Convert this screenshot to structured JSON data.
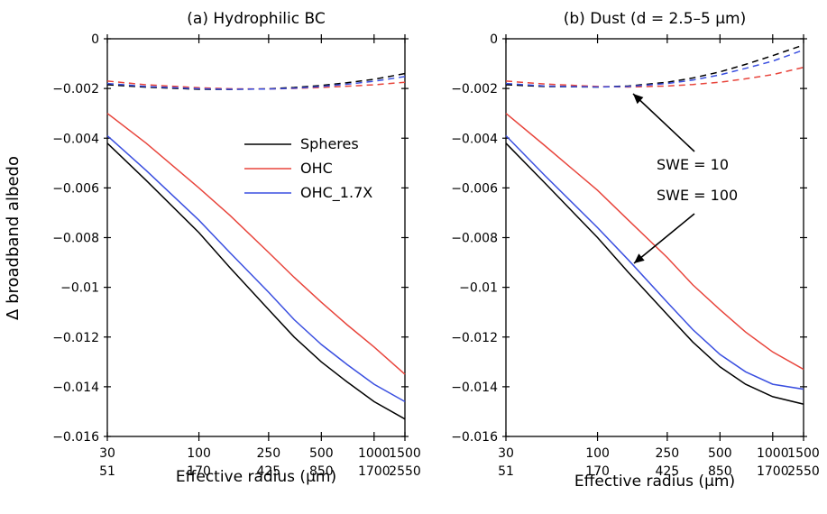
{
  "ylabel": "Δ broadband albedo",
  "chart_data": [
    {
      "type": "line",
      "title": "(a) Hydrophilic BC",
      "xlabel": "Effective radius (μm)",
      "ylabel": "Δ broadband albedo",
      "x_scale": "log",
      "xlim": [
        30,
        1500
      ],
      "ylim": [
        -0.016,
        0
      ],
      "x_ticks": [
        30,
        100,
        250,
        500,
        1000,
        1500
      ],
      "x_tick_labels_top": [
        "30",
        "100",
        "250",
        "500",
        "1000",
        "1500"
      ],
      "x_tick_labels_bottom": [
        "51",
        "170",
        "425",
        "850",
        "1700",
        "2550"
      ],
      "y_ticks": [
        0,
        -0.002,
        -0.004,
        -0.006,
        -0.008,
        -0.01,
        -0.012,
        -0.014,
        -0.016
      ],
      "y_tick_labels": [
        "0",
        "−0.002",
        "−0.004",
        "−0.006",
        "−0.008",
        "−0.01",
        "−0.012",
        "−0.014",
        "−0.016"
      ],
      "x": [
        30,
        50,
        100,
        150,
        250,
        350,
        500,
        700,
        1000,
        1500
      ],
      "legend": {
        "position": "center-right",
        "entries": [
          {
            "label": "Spheres",
            "color": "#000000"
          },
          {
            "label": "OHC",
            "color": "#e8453c"
          },
          {
            "label": "OHC_1.7X",
            "color": "#3a4fe0"
          }
        ]
      },
      "series": [
        {
          "name": "Spheres",
          "swe": 10,
          "style": "dashed",
          "color": "#000000",
          "values": [
            -0.00185,
            -0.00195,
            -0.00203,
            -0.00204,
            -0.00201,
            -0.00196,
            -0.00188,
            -0.00177,
            -0.00163,
            -0.0014
          ]
        },
        {
          "name": "OHC",
          "swe": 10,
          "style": "dashed",
          "color": "#e8453c",
          "values": [
            -0.0017,
            -0.00185,
            -0.00197,
            -0.00201,
            -0.00202,
            -0.002,
            -0.00196,
            -0.00191,
            -0.00185,
            -0.00175
          ]
        },
        {
          "name": "OHC_1.7X",
          "swe": 10,
          "style": "dashed",
          "color": "#3a4fe0",
          "values": [
            -0.0018,
            -0.00192,
            -0.00201,
            -0.00203,
            -0.00202,
            -0.00199,
            -0.00192,
            -0.00183,
            -0.00171,
            -0.00152
          ]
        },
        {
          "name": "Spheres",
          "swe": 100,
          "style": "solid",
          "color": "#000000",
          "values": [
            -0.0042,
            -0.0057,
            -0.0078,
            -0.0092,
            -0.0109,
            -0.012,
            -0.013,
            -0.0138,
            -0.0146,
            -0.0153
          ]
        },
        {
          "name": "OHC",
          "swe": 100,
          "style": "solid",
          "color": "#e8453c",
          "values": [
            -0.003,
            -0.0042,
            -0.006,
            -0.0071,
            -0.0086,
            -0.0096,
            -0.0106,
            -0.0115,
            -0.0124,
            -0.0135
          ]
        },
        {
          "name": "OHC_1.7X",
          "swe": 100,
          "style": "solid",
          "color": "#3a4fe0",
          "values": [
            -0.0039,
            -0.0053,
            -0.0073,
            -0.0086,
            -0.0102,
            -0.0113,
            -0.0123,
            -0.0131,
            -0.0139,
            -0.0146
          ]
        }
      ]
    },
    {
      "type": "line",
      "title": "(b) Dust (d = 2.5–5 μm)",
      "xlabel": "Effective radius (μm)",
      "x_scale": "log",
      "xlim": [
        30,
        1500
      ],
      "ylim": [
        -0.016,
        0
      ],
      "x_ticks": [
        30,
        100,
        250,
        500,
        1000,
        1500
      ],
      "x_tick_labels_top": [
        "30",
        "100",
        "250",
        "500",
        "1000",
        "1500"
      ],
      "x_tick_labels_bottom": [
        "51",
        "170",
        "425",
        "850",
        "1700",
        "2550"
      ],
      "y_ticks": [
        0,
        -0.002,
        -0.004,
        -0.006,
        -0.008,
        -0.01,
        -0.012,
        -0.014,
        -0.016
      ],
      "y_tick_labels": [
        "0",
        "−0.002",
        "−0.004",
        "−0.006",
        "−0.008",
        "−0.01",
        "−0.012",
        "−0.014",
        "−0.016"
      ],
      "x": [
        30,
        50,
        100,
        150,
        250,
        350,
        500,
        700,
        1000,
        1500
      ],
      "annotations": [
        {
          "text": "SWE = 10",
          "points_to_swe": 10
        },
        {
          "text": "SWE = 100",
          "points_to_swe": 100
        }
      ],
      "series": [
        {
          "name": "Spheres",
          "swe": 10,
          "style": "dashed",
          "color": "#000000",
          "values": [
            -0.00185,
            -0.00192,
            -0.00194,
            -0.0019,
            -0.00175,
            -0.00158,
            -0.00133,
            -0.00103,
            -0.00068,
            -0.00025
          ]
        },
        {
          "name": "OHC",
          "swe": 10,
          "style": "dashed",
          "color": "#e8453c",
          "values": [
            -0.0017,
            -0.00182,
            -0.00192,
            -0.00194,
            -0.0019,
            -0.00184,
            -0.00175,
            -0.00161,
            -0.00144,
            -0.00115
          ]
        },
        {
          "name": "OHC_1.7X",
          "swe": 10,
          "style": "dashed",
          "color": "#3a4fe0",
          "values": [
            -0.0018,
            -0.0019,
            -0.00194,
            -0.00192,
            -0.0018,
            -0.00166,
            -0.00145,
            -0.00119,
            -0.0009,
            -0.00045
          ]
        },
        {
          "name": "Spheres",
          "swe": 100,
          "style": "solid",
          "color": "#000000",
          "values": [
            -0.0042,
            -0.0058,
            -0.008,
            -0.0094,
            -0.0111,
            -0.0122,
            -0.0132,
            -0.0139,
            -0.0144,
            -0.0147
          ]
        },
        {
          "name": "OHC",
          "swe": 100,
          "style": "solid",
          "color": "#e8453c",
          "values": [
            -0.003,
            -0.0043,
            -0.0061,
            -0.0073,
            -0.0088,
            -0.0099,
            -0.0109,
            -0.0118,
            -0.0126,
            -0.0133
          ]
        },
        {
          "name": "OHC_1.7X",
          "swe": 100,
          "style": "solid",
          "color": "#3a4fe0",
          "values": [
            -0.0039,
            -0.0055,
            -0.0076,
            -0.0089,
            -0.0106,
            -0.0117,
            -0.0127,
            -0.0134,
            -0.0139,
            -0.0141
          ]
        }
      ]
    }
  ]
}
